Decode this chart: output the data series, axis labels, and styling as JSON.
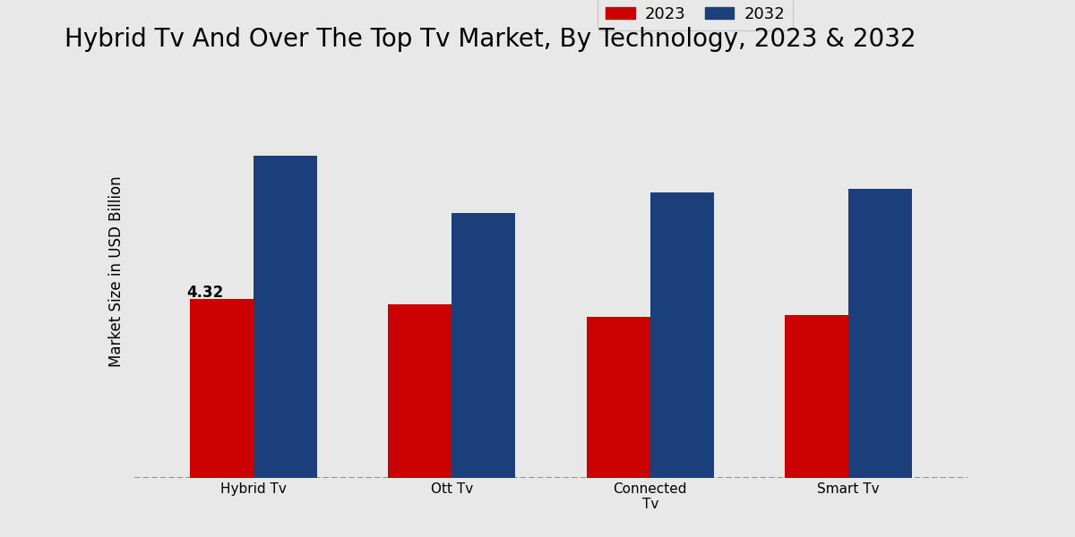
{
  "title": "Hybrid Tv And Over The Top Tv Market, By Technology, 2023 & 2032",
  "categories": [
    "Hybrid Tv",
    "Ott Tv",
    "Connected\nTv",
    "Smart Tv"
  ],
  "values_2023": [
    4.32,
    4.2,
    3.9,
    3.95
  ],
  "values_2032": [
    7.8,
    6.4,
    6.9,
    7.0
  ],
  "color_2023": "#cc0000",
  "color_2032": "#1a3f7a",
  "ylabel": "Market Size in USD Billion",
  "legend_labels": [
    "2023",
    "2032"
  ],
  "annotation_text": "4.32",
  "bar_width": 0.32,
  "ylim": [
    0,
    10
  ],
  "bg_light": "#e8e8e8",
  "bg_white": "#f5f5f5",
  "title_fontsize": 20,
  "axis_label_fontsize": 12,
  "tick_fontsize": 11,
  "legend_fontsize": 13,
  "bottom_bar_color": "#b00000",
  "bottom_bar_height": 0.04
}
